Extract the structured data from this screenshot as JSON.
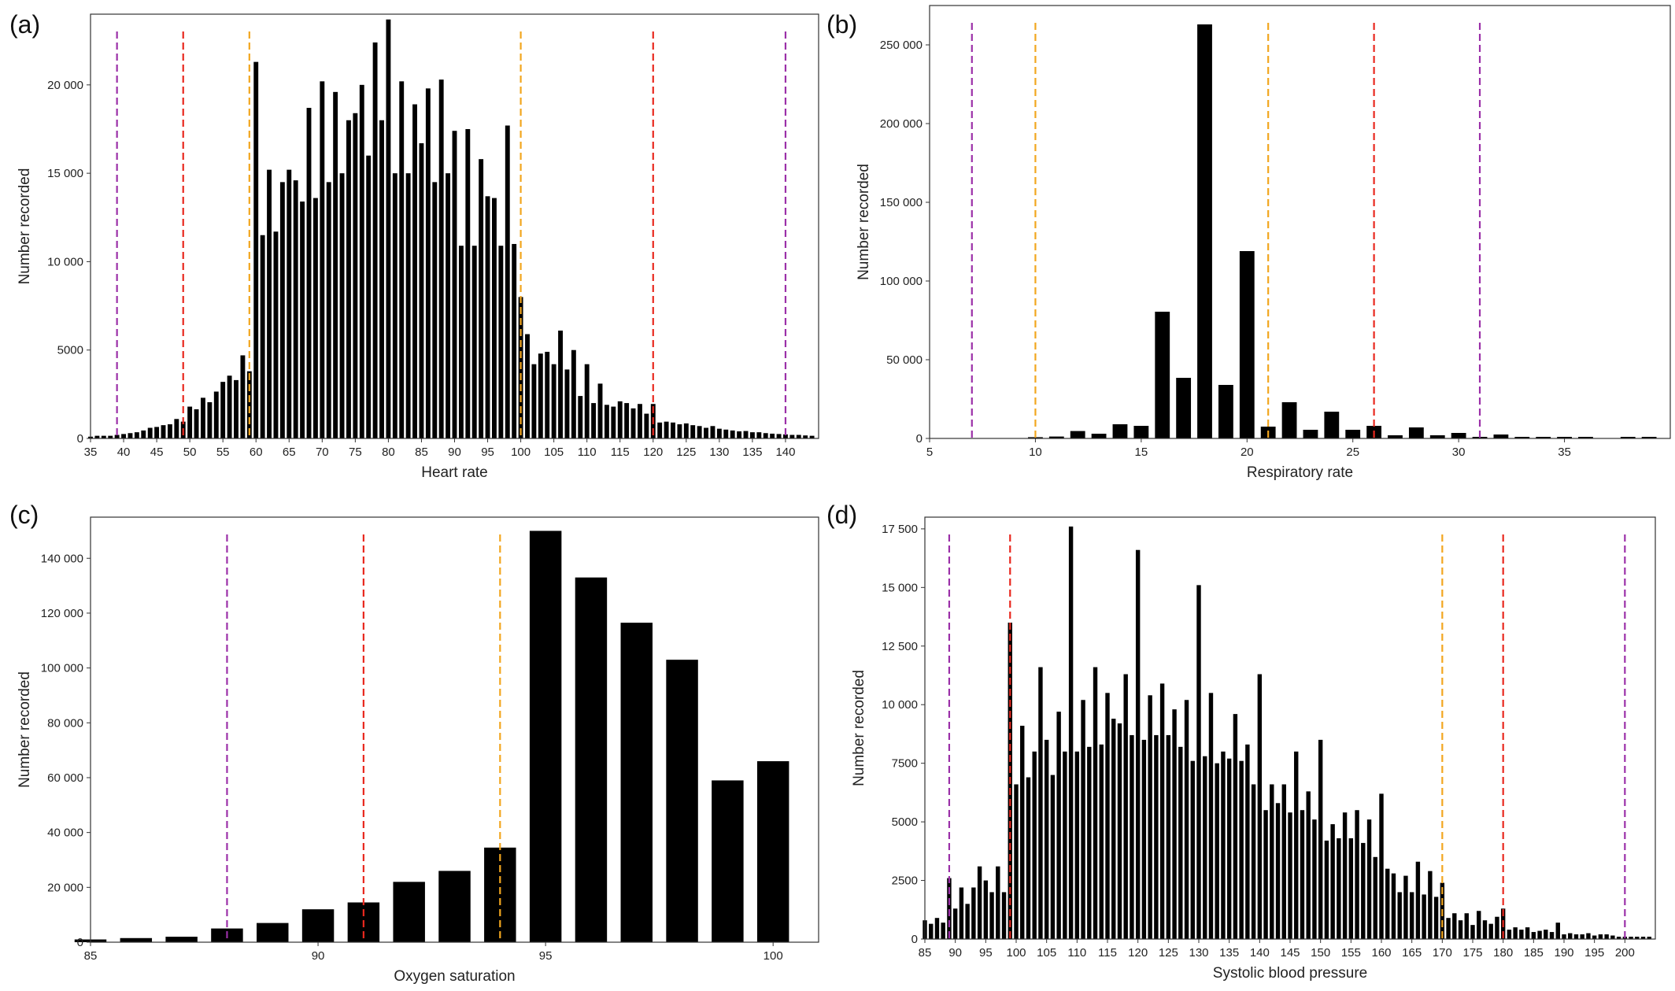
{
  "chart_data": [
    {
      "panel_label": "(a)",
      "type": "bar",
      "xlabel": "Heart rate",
      "ylabel": "Number recorded",
      "xlim": [
        35,
        145
      ],
      "ylim": [
        0,
        24000
      ],
      "xticks": [
        35,
        40,
        45,
        50,
        55,
        60,
        65,
        70,
        75,
        80,
        85,
        90,
        95,
        100,
        105,
        110,
        115,
        120,
        125,
        130,
        135,
        140
      ],
      "yticks": [
        0,
        5000,
        10000,
        15000,
        20000
      ],
      "ytick_labels": [
        "0",
        "5000",
        "10 000",
        "15 000",
        "20 000"
      ],
      "bar_width": 0.7,
      "x": [
        35,
        36,
        37,
        38,
        39,
        40,
        41,
        42,
        43,
        44,
        45,
        46,
        47,
        48,
        49,
        50,
        51,
        52,
        53,
        54,
        55,
        56,
        57,
        58,
        59,
        60,
        61,
        62,
        63,
        64,
        65,
        66,
        67,
        68,
        69,
        70,
        71,
        72,
        73,
        74,
        75,
        76,
        77,
        78,
        79,
        80,
        81,
        82,
        83,
        84,
        85,
        86,
        87,
        88,
        89,
        90,
        91,
        92,
        93,
        94,
        95,
        96,
        97,
        98,
        99,
        100,
        101,
        102,
        103,
        104,
        105,
        106,
        107,
        108,
        109,
        110,
        111,
        112,
        113,
        114,
        115,
        116,
        117,
        118,
        119,
        120,
        121,
        122,
        123,
        124,
        125,
        126,
        127,
        128,
        129,
        130,
        131,
        132,
        133,
        134,
        135,
        136,
        137,
        138,
        139,
        140,
        141,
        142,
        143,
        144
      ],
      "values": [
        100,
        150,
        150,
        150,
        200,
        250,
        300,
        350,
        450,
        600,
        650,
        750,
        800,
        1100,
        950,
        1800,
        1650,
        2300,
        2050,
        2650,
        3200,
        3550,
        3300,
        4700,
        3800,
        21300,
        11500,
        15200,
        11700,
        14500,
        15200,
        14600,
        13400,
        18700,
        13600,
        20200,
        14500,
        19600,
        15000,
        18000,
        18400,
        20000,
        16000,
        22400,
        18000,
        23700,
        15000,
        20200,
        15000,
        18900,
        16700,
        19800,
        14500,
        20300,
        15000,
        17400,
        10900,
        17500,
        10900,
        15800,
        13700,
        13600,
        10900,
        17700,
        11000,
        8000,
        5900,
        4200,
        4800,
        4900,
        4200,
        6100,
        3900,
        5000,
        2400,
        4200,
        2000,
        3100,
        1900,
        1800,
        2100,
        2000,
        1700,
        1950,
        1400,
        1950,
        900,
        950,
        900,
        800,
        850,
        750,
        700,
        600,
        700,
        550,
        500,
        450,
        400,
        420,
        350,
        350,
        300,
        270,
        250,
        230,
        200,
        200,
        170,
        150
      ]
    },
    {
      "panel_label": "(b)",
      "type": "bar",
      "xlabel": "Respiratory rate",
      "ylabel": "Number recorded",
      "xlim": [
        5,
        40
      ],
      "ylim": [
        0,
        275000
      ],
      "xticks": [
        5,
        10,
        15,
        20,
        25,
        30,
        35
      ],
      "yticks": [
        0,
        50000,
        100000,
        150000,
        200000,
        250000
      ],
      "ytick_labels": [
        "0",
        "50 000",
        "100 000",
        "150 000",
        "200 000",
        "250 000"
      ],
      "bar_width": 0.7,
      "x": [
        9,
        10,
        11,
        12,
        13,
        14,
        15,
        16,
        17,
        18,
        19,
        20,
        21,
        22,
        23,
        24,
        25,
        26,
        27,
        28,
        29,
        30,
        31,
        32,
        33,
        34,
        35,
        36,
        37,
        38,
        39
      ],
      "values": [
        200,
        800,
        1200,
        4700,
        3000,
        9000,
        8000,
        80500,
        38500,
        263000,
        34000,
        119000,
        7500,
        23000,
        5500,
        17000,
        5500,
        8000,
        2000,
        7000,
        2000,
        3500,
        1000,
        2500,
        1000,
        1000,
        1000,
        1000,
        0,
        1000,
        1000
      ]
    },
    {
      "panel_label": "(c)",
      "type": "bar",
      "xlabel": "Oxygen saturation",
      "ylabel": "Number recorded",
      "xlim": [
        85,
        101
      ],
      "ylim": [
        0,
        155000
      ],
      "xticks": [
        85,
        90,
        95,
        100
      ],
      "yticks": [
        0,
        20000,
        40000,
        60000,
        80000,
        100000,
        120000,
        140000
      ],
      "ytick_labels": [
        "0",
        "20 000",
        "40 000",
        "60 000",
        "80 000",
        "100 000",
        "120 000",
        "140 000"
      ],
      "bar_width": 0.7,
      "x": [
        85,
        86,
        87,
        88,
        89,
        90,
        91,
        92,
        93,
        94,
        95,
        96,
        97,
        98,
        99,
        100
      ],
      "values": [
        1000,
        1500,
        2000,
        5000,
        7000,
        12000,
        14500,
        22000,
        26000,
        34500,
        150000,
        133000,
        116500,
        103000,
        59000,
        66000
      ]
    },
    {
      "panel_label": "(d)",
      "type": "bar",
      "xlabel": "Systolic blood pressure",
      "ylabel": "Number recorded",
      "xlim": [
        85,
        205
      ],
      "ylim": [
        0,
        18000
      ],
      "xticks": [
        85,
        90,
        95,
        100,
        105,
        110,
        115,
        120,
        125,
        130,
        135,
        140,
        145,
        150,
        155,
        160,
        165,
        170,
        175,
        180,
        185,
        190,
        195,
        200
      ],
      "yticks": [
        0,
        2500,
        5000,
        7500,
        10000,
        12500,
        15000,
        17500
      ],
      "ytick_labels": [
        "0",
        "2500",
        "5000",
        "7500",
        "10 000",
        "12 500",
        "15 000",
        "17 500"
      ],
      "bar_width": 0.7,
      "x": [
        85,
        86,
        87,
        88,
        89,
        90,
        91,
        92,
        93,
        94,
        95,
        96,
        97,
        98,
        99,
        100,
        101,
        102,
        103,
        104,
        105,
        106,
        107,
        108,
        109,
        110,
        111,
        112,
        113,
        114,
        115,
        116,
        117,
        118,
        119,
        120,
        121,
        122,
        123,
        124,
        125,
        126,
        127,
        128,
        129,
        130,
        131,
        132,
        133,
        134,
        135,
        136,
        137,
        138,
        139,
        140,
        141,
        142,
        143,
        144,
        145,
        146,
        147,
        148,
        149,
        150,
        151,
        152,
        153,
        154,
        155,
        156,
        157,
        158,
        159,
        160,
        161,
        162,
        163,
        164,
        165,
        166,
        167,
        168,
        169,
        170,
        171,
        172,
        173,
        174,
        175,
        176,
        177,
        178,
        179,
        180,
        181,
        182,
        183,
        184,
        185,
        186,
        187,
        188,
        189,
        190,
        191,
        192,
        193,
        194,
        195,
        196,
        197,
        198,
        199,
        200,
        201,
        202,
        203,
        204
      ],
      "values": [
        800,
        650,
        900,
        700,
        2600,
        1300,
        2200,
        1500,
        2200,
        3100,
        2500,
        2000,
        3100,
        2000,
        13500,
        6600,
        9100,
        6900,
        8000,
        11600,
        8500,
        7000,
        9700,
        8000,
        17600,
        8000,
        10200,
        8200,
        11600,
        8300,
        10500,
        9400,
        9200,
        11300,
        8700,
        16600,
        8500,
        10400,
        8700,
        10900,
        8700,
        9800,
        8200,
        10200,
        7600,
        15100,
        7800,
        10500,
        7500,
        8000,
        7700,
        9600,
        7600,
        8300,
        6600,
        11300,
        5500,
        6600,
        5800,
        6600,
        5400,
        8000,
        5500,
        6300,
        5100,
        8500,
        4200,
        4900,
        4300,
        5400,
        4300,
        5500,
        4100,
        5100,
        3500,
        6200,
        3000,
        2800,
        2000,
        2700,
        2000,
        3300,
        1900,
        2900,
        1800,
        2400,
        900,
        1100,
        800,
        1100,
        600,
        1200,
        800,
        650,
        950,
        1300,
        400,
        500,
        400,
        500,
        300,
        350,
        400,
        300,
        700,
        200,
        250,
        200,
        200,
        250,
        150,
        200,
        200,
        150,
        100,
        100,
        100,
        100,
        100,
        100
      ]
    }
  ],
  "thresholds": {
    "colors": {
      "purple": "#9b30a8",
      "red": "#e8281e",
      "orange": "#f2a61f"
    },
    "panels": [
      [
        {
          "x": 39,
          "color": "purple"
        },
        {
          "x": 49,
          "color": "red"
        },
        {
          "x": 59,
          "color": "orange"
        },
        {
          "x": 100,
          "color": "orange"
        },
        {
          "x": 120,
          "color": "red"
        },
        {
          "x": 140,
          "color": "purple"
        }
      ],
      [
        {
          "x": 7,
          "color": "purple"
        },
        {
          "x": 10,
          "color": "orange"
        },
        {
          "x": 21,
          "color": "orange"
        },
        {
          "x": 26,
          "color": "red"
        },
        {
          "x": 31,
          "color": "purple"
        }
      ],
      [
        {
          "x": 88,
          "color": "purple"
        },
        {
          "x": 91,
          "color": "red"
        },
        {
          "x": 94,
          "color": "orange"
        }
      ],
      [
        {
          "x": 89,
          "color": "purple"
        },
        {
          "x": 99,
          "color": "red"
        },
        {
          "x": 170,
          "color": "orange"
        },
        {
          "x": 180,
          "color": "red"
        },
        {
          "x": 200,
          "color": "purple"
        }
      ]
    ]
  },
  "style": {
    "bar_color": "#000000",
    "axis_color": "#333333"
  }
}
